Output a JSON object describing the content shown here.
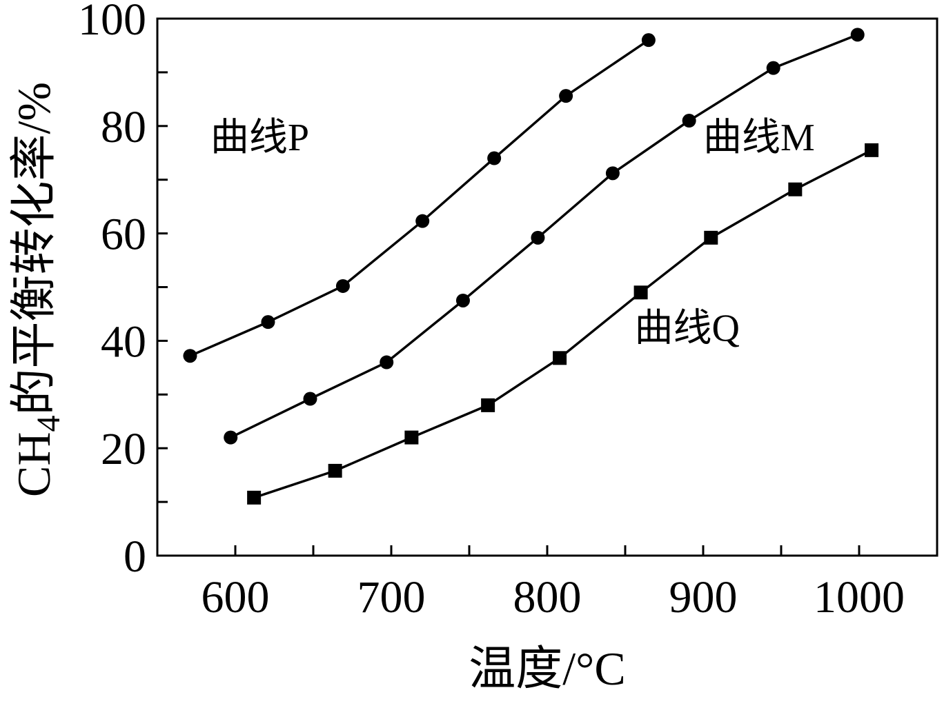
{
  "chart_data": {
    "type": "line",
    "xlabel": "温度/°C",
    "ylabel_main": "CH",
    "ylabel_sub": "4",
    "ylabel_rest": "的平衡转化率/%",
    "xlim": [
      550,
      1050
    ],
    "ylim": [
      0,
      100
    ],
    "xticks": [
      600,
      700,
      800,
      900,
      1000
    ],
    "xticks_minor": [
      650,
      750,
      850,
      950
    ],
    "yticks": [
      0,
      20,
      40,
      60,
      80,
      100
    ],
    "yticks_minor": [
      10,
      30,
      50,
      70,
      90
    ],
    "grid": false,
    "series": [
      {
        "name": "曲线P",
        "marker": "circle",
        "x": [
          571,
          621,
          669,
          720,
          766,
          812,
          865
        ],
        "y": [
          37.2,
          43.5,
          50.2,
          62.3,
          74.0,
          85.6,
          96.0
        ]
      },
      {
        "name": "曲线M",
        "marker": "circle",
        "x": [
          597,
          648,
          697,
          746,
          794,
          842,
          891,
          945,
          999
        ],
        "y": [
          22.0,
          29.2,
          36.0,
          47.5,
          59.2,
          71.2,
          81.0,
          90.8,
          97.0
        ]
      },
      {
        "name": "曲线Q",
        "marker": "square",
        "x": [
          612,
          664,
          713,
          762,
          808,
          860,
          905,
          959,
          1008
        ],
        "y": [
          10.8,
          15.8,
          22.0,
          28.0,
          36.8,
          49.0,
          59.2,
          68.2,
          75.5
        ]
      }
    ]
  }
}
